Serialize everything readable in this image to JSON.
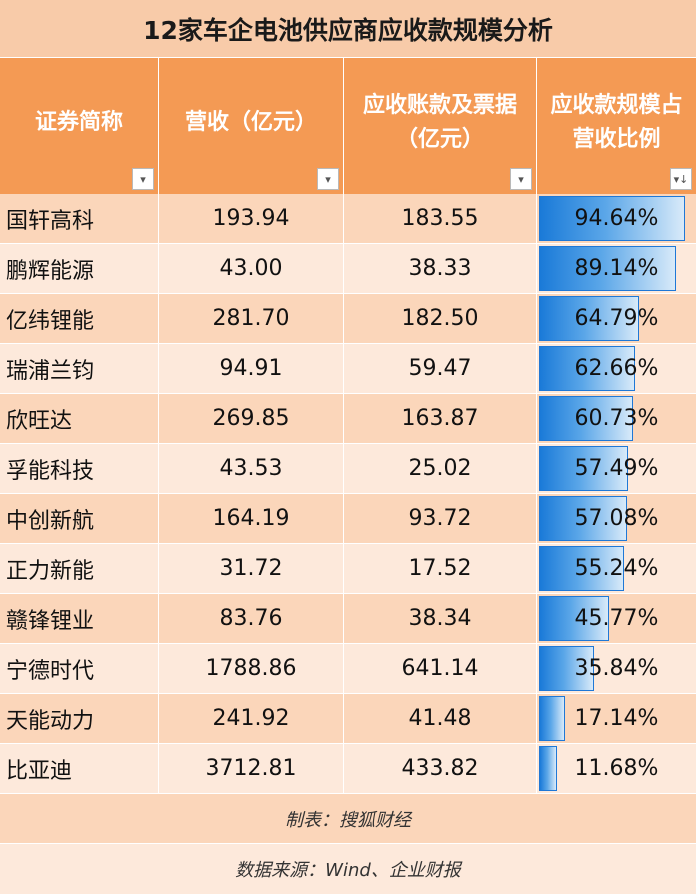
{
  "title": "12家车企电池供应商应收款规模分析",
  "headers": [
    {
      "lines": [
        "证券简称"
      ],
      "filter_icon": "dropdown-arrow-icon",
      "filter_glyph": "▾"
    },
    {
      "lines": [
        "营收（亿元）"
      ],
      "filter_icon": "dropdown-arrow-icon",
      "filter_glyph": "▾"
    },
    {
      "lines": [
        "应收账款及票据",
        "（亿元）"
      ],
      "filter_icon": "dropdown-arrow-icon",
      "filter_glyph": "▾"
    },
    {
      "lines": [
        "应收款规模占",
        "营收比例"
      ],
      "filter_icon": "sort-descending-filter-icon",
      "filter_glyph": "▾↓"
    }
  ],
  "rows": [
    {
      "name": "国轩高科",
      "revenue": "193.94",
      "receivables": "183.55",
      "ratio": "94.64%",
      "ratio_value": 94.64
    },
    {
      "name": "鹏辉能源",
      "revenue": "43.00",
      "receivables": "38.33",
      "ratio": "89.14%",
      "ratio_value": 89.14
    },
    {
      "name": "亿纬锂能",
      "revenue": "281.70",
      "receivables": "182.50",
      "ratio": "64.79%",
      "ratio_value": 64.79
    },
    {
      "name": "瑞浦兰钧",
      "revenue": "94.91",
      "receivables": "59.47",
      "ratio": "62.66%",
      "ratio_value": 62.66
    },
    {
      "name": "欣旺达",
      "revenue": "269.85",
      "receivables": "163.87",
      "ratio": "60.73%",
      "ratio_value": 60.73
    },
    {
      "name": "孚能科技",
      "revenue": "43.53",
      "receivables": "25.02",
      "ratio": "57.49%",
      "ratio_value": 57.49
    },
    {
      "name": "中创新航",
      "revenue": "164.19",
      "receivables": "93.72",
      "ratio": "57.08%",
      "ratio_value": 57.08
    },
    {
      "name": "正力新能",
      "revenue": "31.72",
      "receivables": "17.52",
      "ratio": "55.24%",
      "ratio_value": 55.24
    },
    {
      "name": "赣锋锂业",
      "revenue": "83.76",
      "receivables": "38.34",
      "ratio": "45.77%",
      "ratio_value": 45.77
    },
    {
      "name": "宁德时代",
      "revenue": "1788.86",
      "receivables": "641.14",
      "ratio": "35.84%",
      "ratio_value": 35.84
    },
    {
      "name": "天能动力",
      "revenue": "241.92",
      "receivables": "41.48",
      "ratio": "17.14%",
      "ratio_value": 17.14
    },
    {
      "name": "比亚迪",
      "revenue": "3712.81",
      "receivables": "433.82",
      "ratio": "11.68%",
      "ratio_value": 11.68
    }
  ],
  "footer": {
    "made_by": "制表：搜狐财经",
    "source": "数据来源：Wind、企业财报"
  },
  "colors": {
    "title_bg": "#f8cba9",
    "header_bg": "#f49a54",
    "row_odd": "#fbd6ba",
    "row_even": "#fde9db",
    "databar": "#1a7ad8"
  }
}
